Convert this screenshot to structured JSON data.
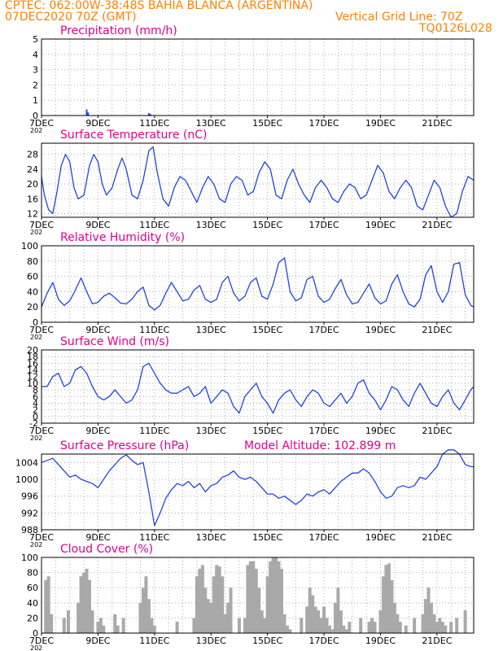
{
  "header": {
    "line1": "CPTEC:   062:00W-38:48S   BAHIA BLANCA (ARGENTINA)",
    "line2": "07DEC2020 70Z (GMT)",
    "grid_note": "Vertical Grid Line: 70Z",
    "code": "TQ0126L028",
    "color": "#ff8000"
  },
  "colors": {
    "title": "#e0008c",
    "series": "#2244dd",
    "cloud": "#a9a9a9",
    "axis": "#000000"
  },
  "x_axis": {
    "start_label": "7DEC",
    "tick_labels": [
      "7DEC",
      "9DEC",
      "11DEC",
      "13DEC",
      "15DEC",
      "17DEC",
      "19DEC",
      "21DEC"
    ],
    "tick_days": [
      7,
      9,
      11,
      13,
      15,
      17,
      19,
      21
    ],
    "xlim": [
      7,
      22.3
    ],
    "year_stub": "202"
  },
  "chart_data": [
    {
      "type": "bar",
      "title": "Precipitation (mm/h)",
      "ylim": [
        0,
        5
      ],
      "yticks": [
        0,
        1,
        2,
        3,
        4,
        5
      ],
      "x": [
        8.6,
        8.65,
        10.8,
        10.85
      ],
      "values": [
        0.4,
        0.2,
        0.15,
        0.1
      ]
    },
    {
      "type": "line",
      "title": "Surface Temperature (nC)",
      "ylim": [
        11,
        31
      ],
      "yticks": [
        12,
        16,
        20,
        24,
        28
      ],
      "x": [
        7.0,
        7.1,
        7.25,
        7.4,
        7.55,
        7.7,
        7.85,
        8.0,
        8.15,
        8.3,
        8.5,
        8.7,
        8.85,
        9.0,
        9.15,
        9.3,
        9.5,
        9.7,
        9.85,
        10.0,
        10.2,
        10.4,
        10.6,
        10.8,
        10.95,
        11.1,
        11.3,
        11.5,
        11.7,
        11.9,
        12.1,
        12.3,
        12.5,
        12.7,
        12.9,
        13.1,
        13.3,
        13.5,
        13.7,
        13.9,
        14.1,
        14.3,
        14.5,
        14.7,
        14.9,
        15.1,
        15.3,
        15.5,
        15.7,
        15.9,
        16.1,
        16.3,
        16.5,
        16.7,
        16.9,
        17.1,
        17.3,
        17.5,
        17.7,
        17.9,
        18.1,
        18.3,
        18.5,
        18.7,
        18.9,
        19.1,
        19.3,
        19.5,
        19.7,
        19.9,
        20.1,
        20.3,
        20.5,
        20.7,
        20.9,
        21.1,
        21.3,
        21.5,
        21.7,
        21.9,
        22.1,
        22.3
      ],
      "values": [
        22,
        17,
        13,
        12,
        18,
        25,
        28,
        26,
        19,
        16,
        17,
        25,
        28,
        26,
        20,
        17,
        19,
        24,
        27,
        24,
        17,
        16,
        21,
        29,
        30,
        23,
        16,
        14,
        19,
        22,
        21,
        18,
        15,
        19,
        22,
        20,
        16,
        15,
        20,
        22,
        21,
        17,
        18,
        23,
        26,
        24,
        17,
        16,
        21,
        24,
        20,
        17,
        15,
        19,
        21,
        19,
        16,
        15,
        18,
        20,
        19,
        16,
        17,
        21,
        25,
        23,
        18,
        16,
        19,
        21,
        19,
        14,
        13,
        17,
        21,
        19,
        14,
        11,
        12,
        18,
        22,
        21
      ]
    },
    {
      "type": "line",
      "title": "Relative Humidity (%)",
      "ylim": [
        0,
        100
      ],
      "yticks": [
        0,
        20,
        40,
        60,
        80,
        100
      ],
      "x": [
        7.0,
        7.2,
        7.4,
        7.6,
        7.8,
        8.0,
        8.2,
        8.4,
        8.6,
        8.8,
        9.0,
        9.2,
        9.4,
        9.6,
        9.8,
        10.0,
        10.2,
        10.4,
        10.6,
        10.8,
        11.0,
        11.2,
        11.4,
        11.6,
        11.8,
        12.0,
        12.2,
        12.4,
        12.6,
        12.8,
        13.0,
        13.2,
        13.4,
        13.6,
        13.8,
        14.0,
        14.2,
        14.4,
        14.6,
        14.8,
        15.0,
        15.2,
        15.4,
        15.6,
        15.8,
        16.0,
        16.2,
        16.4,
        16.6,
        16.8,
        17.0,
        17.2,
        17.4,
        17.6,
        17.8,
        18.0,
        18.2,
        18.4,
        18.6,
        18.8,
        19.0,
        19.2,
        19.4,
        19.6,
        19.8,
        20.0,
        20.2,
        20.4,
        20.6,
        20.8,
        21.0,
        21.2,
        21.4,
        21.6,
        21.8,
        22.0,
        22.2,
        22.3
      ],
      "values": [
        20,
        38,
        52,
        30,
        22,
        28,
        42,
        58,
        40,
        24,
        26,
        34,
        38,
        32,
        25,
        24,
        30,
        40,
        46,
        22,
        16,
        22,
        38,
        52,
        40,
        28,
        30,
        42,
        48,
        30,
        26,
        30,
        52,
        60,
        38,
        28,
        34,
        52,
        58,
        34,
        30,
        50,
        78,
        84,
        40,
        28,
        32,
        56,
        60,
        34,
        26,
        30,
        44,
        56,
        36,
        24,
        26,
        38,
        50,
        32,
        24,
        28,
        50,
        62,
        40,
        24,
        20,
        30,
        62,
        74,
        40,
        26,
        40,
        76,
        78,
        36,
        22,
        20
      ]
    },
    {
      "type": "line",
      "title": "Surface Wind (m/s)",
      "ylim": [
        -2,
        20
      ],
      "yticks": [
        -2,
        0,
        2,
        4,
        6,
        8,
        10,
        12,
        14,
        16,
        18,
        20
      ],
      "x": [
        7.0,
        7.2,
        7.4,
        7.6,
        7.8,
        8.0,
        8.2,
        8.4,
        8.6,
        8.8,
        9.0,
        9.2,
        9.4,
        9.6,
        9.8,
        10.0,
        10.2,
        10.4,
        10.6,
        10.8,
        11.0,
        11.2,
        11.4,
        11.6,
        11.8,
        12.0,
        12.2,
        12.4,
        12.6,
        12.8,
        13.0,
        13.2,
        13.4,
        13.6,
        13.8,
        14.0,
        14.2,
        14.4,
        14.6,
        14.8,
        15.0,
        15.2,
        15.4,
        15.6,
        15.8,
        16.0,
        16.2,
        16.4,
        16.6,
        16.8,
        17.0,
        17.2,
        17.4,
        17.6,
        17.8,
        18.0,
        18.2,
        18.4,
        18.6,
        18.8,
        19.0,
        19.2,
        19.4,
        19.6,
        19.8,
        20.0,
        20.2,
        20.4,
        20.6,
        20.8,
        21.0,
        21.2,
        21.4,
        21.6,
        21.8,
        22.0,
        22.2,
        22.3
      ],
      "values": [
        9,
        9,
        12,
        13,
        9,
        10,
        14,
        15,
        13,
        9,
        6,
        5,
        6,
        8,
        6,
        4,
        5,
        8,
        15,
        16,
        13,
        10,
        8,
        7,
        7,
        8,
        9,
        6,
        7,
        9,
        4,
        6,
        8,
        7,
        3,
        1,
        6,
        8,
        10,
        6,
        4,
        1,
        5,
        7,
        8,
        5,
        3,
        6,
        8,
        7,
        4,
        3,
        5,
        7,
        4,
        6,
        10,
        11,
        7,
        5,
        2,
        5,
        9,
        8,
        5,
        3,
        7,
        10,
        7,
        4,
        3,
        6,
        8,
        4,
        2,
        5,
        8,
        9
      ]
    },
    {
      "type": "line",
      "title": "Surface Pressure (hPa)",
      "note": "Model Altitude: 102.899  m",
      "ylim": [
        988,
        1006
      ],
      "yticks": [
        988,
        992,
        996,
        1000,
        1004
      ],
      "x": [
        7.0,
        7.2,
        7.4,
        7.6,
        7.8,
        8.0,
        8.2,
        8.4,
        8.6,
        8.8,
        9.0,
        9.2,
        9.4,
        9.6,
        9.8,
        10.0,
        10.2,
        10.4,
        10.6,
        10.8,
        11.0,
        11.2,
        11.4,
        11.6,
        11.8,
        12.0,
        12.2,
        12.4,
        12.6,
        12.8,
        13.0,
        13.2,
        13.4,
        13.6,
        13.8,
        14.0,
        14.2,
        14.4,
        14.6,
        14.8,
        15.0,
        15.2,
        15.4,
        15.6,
        15.8,
        16.0,
        16.2,
        16.4,
        16.6,
        16.8,
        17.0,
        17.2,
        17.4,
        17.6,
        17.8,
        18.0,
        18.2,
        18.4,
        18.6,
        18.8,
        19.0,
        19.2,
        19.4,
        19.6,
        19.8,
        20.0,
        20.2,
        20.4,
        20.6,
        20.8,
        21.0,
        21.2,
        21.4,
        21.6,
        21.8,
        22.0,
        22.2,
        22.3
      ],
      "values": [
        1004,
        1004.5,
        1005,
        1003.5,
        1002,
        1000.5,
        1001,
        1000,
        999.5,
        999,
        998,
        1000,
        1002,
        1003.5,
        1005,
        1005.8,
        1004.5,
        1003.5,
        1004,
        997,
        989,
        992,
        995.5,
        997.5,
        999,
        998.5,
        999.5,
        998,
        999,
        997,
        998.5,
        999,
        1000.5,
        1001,
        1002,
        1000.5,
        1000,
        1000.5,
        999.5,
        998,
        996.5,
        996.5,
        995.5,
        996,
        995,
        994,
        995,
        996.5,
        996,
        997,
        997.5,
        996.5,
        998,
        999.5,
        1000.5,
        1001.5,
        1001.5,
        1002.5,
        1001.5,
        999.5,
        997,
        995.5,
        996,
        998,
        998.5,
        998,
        998.5,
        1000.5,
        1000,
        1001.5,
        1003,
        1006,
        1007,
        1007,
        1006,
        1003.5,
        1003,
        1003
      ]
    },
    {
      "type": "bar",
      "title": "Cloud Cover (%)",
      "ylim": [
        0,
        100
      ],
      "yticks": [
        0,
        20,
        40,
        60,
        80,
        100
      ],
      "x": [
        7.15,
        7.25,
        7.35,
        7.8,
        7.95,
        8.3,
        8.4,
        8.5,
        8.6,
        8.7,
        8.8,
        9.0,
        9.1,
        9.2,
        9.6,
        9.7,
        9.9,
        10.5,
        10.6,
        10.7,
        10.8,
        10.9,
        11.0,
        11.8,
        12.4,
        12.5,
        12.6,
        12.7,
        12.8,
        12.9,
        13.0,
        13.1,
        13.2,
        13.3,
        13.4,
        13.5,
        13.6,
        13.7,
        14.0,
        14.2,
        14.3,
        14.4,
        14.5,
        14.6,
        14.7,
        14.8,
        14.9,
        15.0,
        15.1,
        15.2,
        15.3,
        15.4,
        15.5,
        15.6,
        15.7,
        15.8,
        16.2,
        16.4,
        16.5,
        16.6,
        16.7,
        16.8,
        16.9,
        17.0,
        17.1,
        17.2,
        17.3,
        17.4,
        17.5,
        17.6,
        17.7,
        17.8,
        17.9,
        18.3,
        18.6,
        18.7,
        18.8,
        19.0,
        19.1,
        19.2,
        19.3,
        19.4,
        19.5,
        19.6,
        19.7,
        19.9,
        20.2,
        20.5,
        20.6,
        20.7,
        20.8,
        20.9,
        21.0,
        21.1,
        21.2,
        21.3,
        21.5,
        21.7,
        22.0
      ],
      "values": [
        70,
        75,
        25,
        20,
        30,
        40,
        75,
        80,
        85,
        70,
        30,
        15,
        20,
        10,
        25,
        10,
        20,
        40,
        60,
        75,
        45,
        20,
        10,
        15,
        20,
        75,
        85,
        90,
        60,
        45,
        40,
        75,
        90,
        88,
        75,
        25,
        40,
        60,
        20,
        20,
        90,
        95,
        95,
        85,
        60,
        30,
        20,
        75,
        95,
        100,
        100,
        95,
        85,
        25,
        10,
        5,
        20,
        35,
        60,
        50,
        35,
        30,
        20,
        35,
        20,
        10,
        5,
        40,
        60,
        30,
        10,
        5,
        15,
        20,
        15,
        20,
        15,
        30,
        75,
        90,
        92,
        70,
        40,
        25,
        15,
        10,
        20,
        25,
        45,
        60,
        40,
        25,
        15,
        20,
        15,
        10,
        15,
        20,
        30
      ]
    }
  ]
}
